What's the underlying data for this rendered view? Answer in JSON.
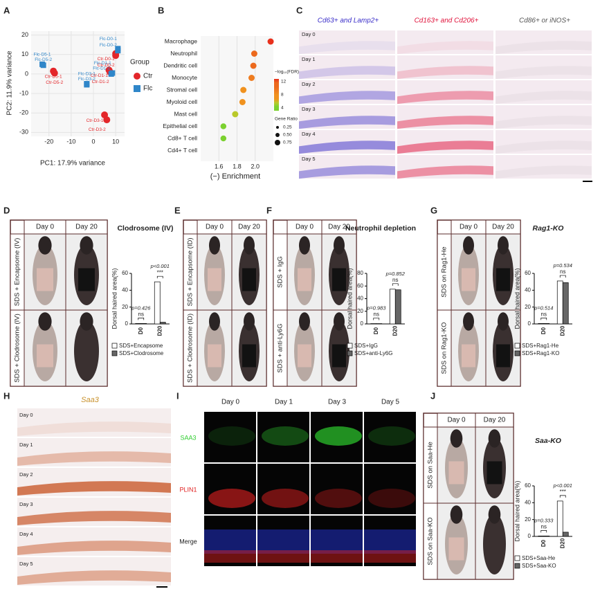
{
  "figure": {
    "panel_labels": [
      "A",
      "B",
      "C",
      "D",
      "E",
      "F",
      "G",
      "H",
      "I",
      "J"
    ],
    "C": {
      "columns": [
        "Cd63+ and Lamp2+",
        "Cd163+ and Cd206+",
        "Cd86+ or iNOS+"
      ],
      "rows": [
        "Day 0",
        "Day 1",
        "Day 2",
        "Day 3",
        "Day 4",
        "Day 5"
      ]
    },
    "D": {
      "columns": [
        "Day  0",
        "Day 20"
      ],
      "rows": [
        "SDS + Encapsome (IV)",
        "SDS + Clodrosome (IV)"
      ]
    },
    "E": {
      "columns": [
        "Day  0",
        "Day 20"
      ],
      "rows": [
        "SDS + Encapsome (ID)",
        "SDS + Clodrosome (ID)"
      ]
    },
    "F": {
      "columns": [
        "Day  0",
        "Day 20"
      ],
      "rows": [
        "SDS + IgG",
        "SDS + anti-Ly6G"
      ]
    },
    "G": {
      "columns": [
        "Day  0",
        "Day 20"
      ],
      "rows": [
        "SDS on Rag1-He",
        "SDS on Rag1-KO"
      ]
    },
    "H": {
      "title": "Saa3",
      "rows": [
        "Day 0",
        "Day 1",
        "Day 2",
        "Day 3",
        "Day 4",
        "Day 5"
      ]
    },
    "I": {
      "columns": [
        "Day 0",
        "Day 1",
        "Day 3",
        "Day 5"
      ],
      "rows": [
        "SAA3",
        "PLIN1",
        "Merge"
      ]
    },
    "J": {
      "columns": [
        "Day  0",
        "Day 20"
      ],
      "rows": [
        "SDS on Saa-He",
        "SDS on Saa-KO"
      ]
    }
  },
  "chart_data": [
    {
      "type": "scatter",
      "xlabel": "PC1: 17.9% variance",
      "ylabel": "PC2: 11.9% variance",
      "xlim": [
        -28,
        14
      ],
      "xticks": [
        -20,
        -10,
        0,
        10
      ],
      "ylim": [
        -32,
        22
      ],
      "yticks": [
        -30,
        -20,
        -10,
        0,
        10,
        20
      ],
      "legend_title": "Group",
      "series": [
        {
          "name": "Ctr",
          "color": "#e3262a",
          "marker": "circle",
          "x": [
            10,
            10,
            7,
            7.5,
            5,
            6,
            -18,
            -17.5
          ],
          "y": [
            10.5,
            9.5,
            2,
            1,
            -21,
            -23.5,
            1.5,
            0.5
          ],
          "labels": [
            "Ctr-D0-1",
            "Ctr-D0-2",
            "Ctr-D1-1",
            "Ctr-D1-2",
            "Ctr-D3-1",
            "Ctr-D3-2",
            "Ctr-D5-1",
            "Ctr-D5-2"
          ]
        },
        {
          "name": "Flc",
          "color": "#2f86c9",
          "marker": "square",
          "x": [
            11,
            11,
            8.5,
            8,
            -3,
            -3,
            -23,
            -22.5
          ],
          "y": [
            13,
            12,
            0.5,
            0,
            -5,
            -5.5,
            5,
            4.5
          ],
          "labels": [
            "Flc-D0-1",
            "Flc-D0-2",
            "Flc-D1-1",
            "Flc-D1-2",
            "Flc-D3-1",
            "Flc-D3-2",
            "Flc-D5-1",
            "Flc-D5-2"
          ]
        }
      ]
    },
    {
      "type": "dot",
      "xlabel": "(−) Enrichment",
      "categories": [
        "Macrophage",
        "Neutrophil",
        "Dendritic cell",
        "Monocyte",
        "Stromal cell",
        "Myoloid cell",
        "Mast cell",
        "Epithelial cell",
        "Cd8+ T cell",
        "Cd4+ T cell"
      ],
      "values": [
        2.17,
        1.99,
        1.98,
        1.96,
        1.87,
        1.86,
        1.78,
        1.65,
        1.65,
        null
      ],
      "sizes": [
        0.5,
        0.5,
        0.5,
        0.5,
        0.5,
        0.5,
        0.5,
        0.45,
        0.45,
        null
      ],
      "colors": [
        "#e8301c",
        "#ec6a1e",
        "#ec6a1e",
        "#ee7c20",
        "#f0921f",
        "#f0921f",
        "#b9c92a",
        "#7bd12f",
        "#7bd12f",
        null
      ],
      "xlim": [
        1.4,
        2.2
      ],
      "xticks": [
        1.6,
        1.8,
        {
          "value": 2.0,
          "label": "2.0"
        }
      ],
      "color_title": "−log₁₀(FDR)",
      "color_ticks": [
        12,
        8,
        4
      ],
      "size_title": "Gene Ratio",
      "size_ticks": [
        0.25,
        {
          "value": 0.5,
          "label": "0.50"
        },
        0.75
      ]
    },
    {
      "type": "bar",
      "panel": "D",
      "title": "Clodrosome (IV)",
      "ylabel": "Dorsal haired area(%)",
      "categories": [
        "D0",
        "D20"
      ],
      "ylim": [
        0,
        60
      ],
      "yticks": [
        0,
        20,
        40,
        60
      ],
      "series": [
        {
          "name": "SDS+Encapsome",
          "color": "#ffffff",
          "values": [
            0.5,
            50
          ]
        },
        {
          "name": "SDS+Clodrosome",
          "color": "#666666",
          "values": [
            0.5,
            2
          ]
        }
      ],
      "p_labels": [
        "p=0.426",
        "p<0.001"
      ],
      "sig_labels": [
        "ns",
        "***"
      ]
    },
    {
      "type": "bar",
      "panel": "F",
      "title": "Neutrophil depletion",
      "ylabel": "Dorsal haired area(%)",
      "categories": [
        "D0",
        "D20"
      ],
      "ylim": [
        0,
        80
      ],
      "yticks": [
        0,
        20,
        40,
        60,
        80
      ],
      "series": [
        {
          "name": "SDS+IgG",
          "color": "#ffffff",
          "values": [
            0.5,
            55
          ]
        },
        {
          "name": "SDS+anti-Ly6G",
          "color": "#666666",
          "values": [
            0.5,
            54
          ]
        }
      ],
      "p_labels": [
        "p=0.983",
        "p=0.852"
      ],
      "sig_labels": [
        "ns",
        "ns"
      ]
    },
    {
      "type": "bar",
      "panel": "G",
      "title": "Rag1-KO",
      "ylabel": "Dorsal haired area(%)",
      "categories": [
        "D0",
        "D20"
      ],
      "ylim": [
        0,
        60
      ],
      "yticks": [
        0,
        20,
        40,
        60
      ],
      "series": [
        {
          "name": "SDS+Rag1-He",
          "color": "#ffffff",
          "values": [
            0.5,
            51
          ]
        },
        {
          "name": "SDS+Rag1-KO",
          "color": "#666666",
          "values": [
            0.5,
            49
          ]
        }
      ],
      "p_labels": [
        "p=0.514",
        "p=0.534"
      ],
      "sig_labels": [
        "ns",
        "ns"
      ]
    },
    {
      "type": "bar",
      "panel": "J",
      "title": "Saa-KO",
      "ylabel": "Dorsal haired area(%)",
      "categories": [
        "D0",
        "D20"
      ],
      "ylim": [
        0,
        60
      ],
      "yticks": [
        0,
        20,
        40,
        60
      ],
      "series": [
        {
          "name": "SDS+Saa-He",
          "color": "#ffffff",
          "values": [
            0.5,
            42
          ]
        },
        {
          "name": "SDS+Saa-KO",
          "color": "#666666",
          "values": [
            0.5,
            5
          ]
        }
      ],
      "p_labels": [
        "p=0.333",
        "p<0.001"
      ],
      "sig_labels": [
        "ns",
        "***"
      ]
    }
  ]
}
